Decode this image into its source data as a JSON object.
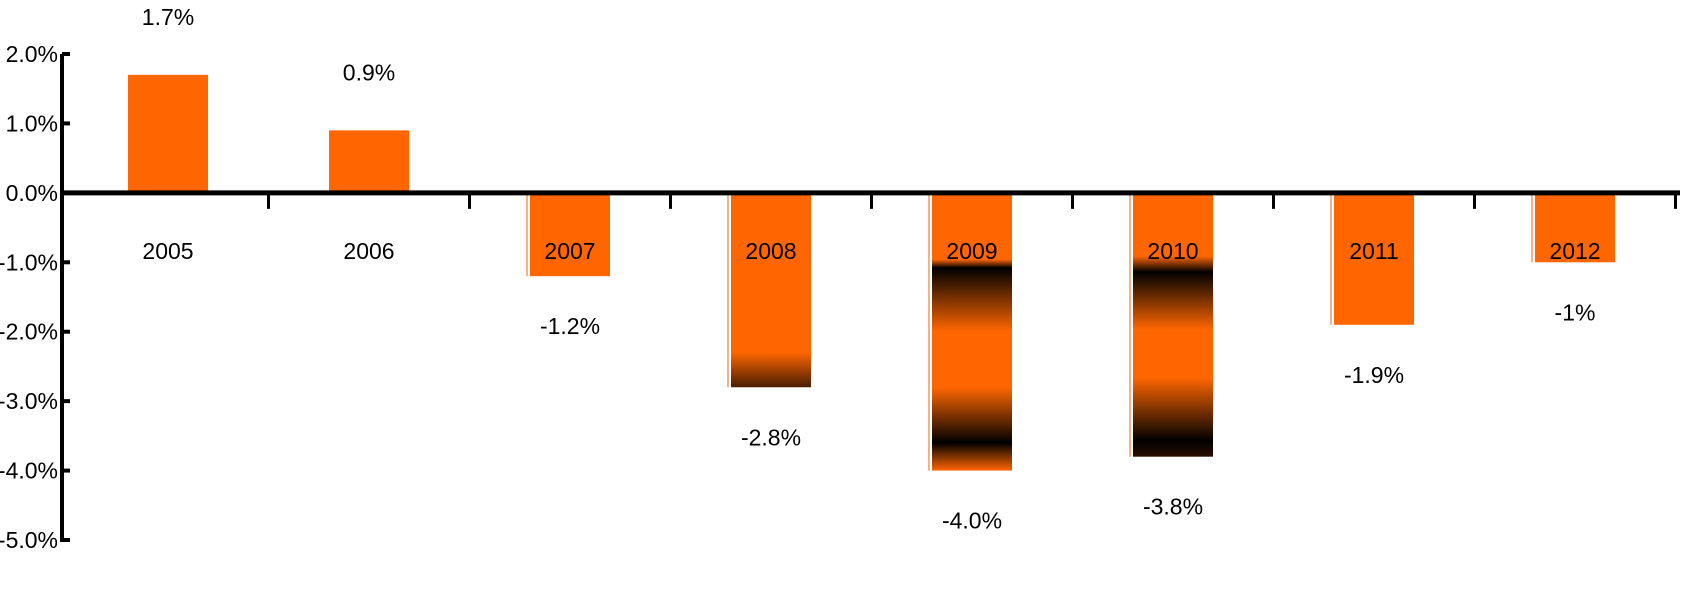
{
  "chart_data": {
    "type": "bar",
    "title": "",
    "xlabel": "",
    "ylabel": "",
    "categories": [
      "2005",
      "2006",
      "2007",
      "2008",
      "2009",
      "2010",
      "2011",
      "2012"
    ],
    "values": [
      1.7,
      0.9,
      -1.2,
      -2.8,
      -4.0,
      -3.8,
      -1.9,
      -1.0
    ],
    "data_labels": [
      "1.7%",
      "0.9%",
      "-1.2%",
      "-2.8%",
      "-4.0%",
      "-3.8%",
      "-1.9%",
      "-1%"
    ],
    "ylim": [
      -5.0,
      2.0
    ],
    "yticks": [
      2.0,
      1.0,
      0.0,
      -1.0,
      -2.0,
      -3.0,
      -4.0,
      -5.0
    ],
    "ytick_labels": [
      "2.0%",
      "1.0%",
      "0.0%",
      "-1.0%",
      "-2.0%",
      "-3.0%",
      "-4.0%",
      "-5.0%"
    ],
    "grid": false,
    "legend": "none",
    "colors": {
      "bar": "#ff6600",
      "bar_shadow": "#000000",
      "axis": "#000000"
    }
  }
}
